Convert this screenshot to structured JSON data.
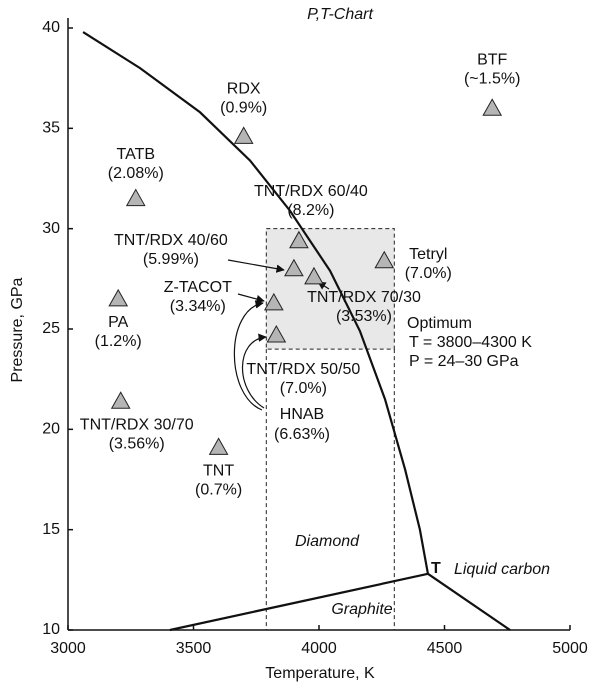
{
  "chart_data": {
    "type": "scatter",
    "title": "P,T-Chart",
    "xlabel": "Temperature, K",
    "ylabel": "Pressure, GPa",
    "xlim": [
      3000,
      5000
    ],
    "ylim": [
      10,
      40
    ],
    "xticks": [
      3000,
      3500,
      4000,
      4500,
      5000
    ],
    "yticks": [
      10,
      15,
      20,
      25,
      30,
      35,
      40
    ],
    "marker_color": "#b5b5b5",
    "points": [
      {
        "name": "RDX",
        "label": "(0.9%)",
        "x": 3700,
        "y": 34.6
      },
      {
        "name": "BTF",
        "label": "(~1.5%)",
        "x": 4690,
        "y": 36
      },
      {
        "name": "TATB",
        "label": "(2.08%)",
        "x": 3270,
        "y": 31.5
      },
      {
        "name": "TNT/RDX 60/40",
        "label": "(8.2%)",
        "x": 3920,
        "y": 29.4
      },
      {
        "name": "TNT/RDX 40/60",
        "label": "(5.99%)",
        "x": 3900,
        "y": 28
      },
      {
        "name": "TNT/RDX 70/30",
        "label": "(3.53%)",
        "x": 3980,
        "y": 27.6
      },
      {
        "name": "Tetryl",
        "label": "(7.0%)",
        "x": 4260,
        "y": 28.4
      },
      {
        "name": "PA",
        "label": "(1.2%)",
        "x": 3200,
        "y": 26.5
      },
      {
        "name": "Z-TACOT",
        "label": "(3.34%)",
        "x": 3820,
        "y": 26.3
      },
      {
        "name": "TNT/RDX 50/50",
        "label": "(7.0%)",
        "x": 3830,
        "y": 24.7
      },
      {
        "name": "TNT/RDX 30/70",
        "label": "(3.56%)",
        "x": 3210,
        "y": 21.4
      },
      {
        "name": "TNT",
        "label": "(0.7%)",
        "x": 3600,
        "y": 19.1
      }
    ],
    "curves": [
      {
        "x": [
          3060,
          3287,
          3526,
          3725,
          3884,
          4044,
          4163,
          4263,
          4343,
          4402,
          4434
        ],
        "y": [
          39.8,
          38.0,
          35.8,
          33.4,
          30.9,
          27.9,
          24.9,
          21.5,
          18.0,
          15.0,
          12.8
        ]
      },
      {
        "x": [
          3406,
          4434
        ],
        "y": [
          10,
          12.8
        ]
      },
      {
        "x": [
          4434,
          4761
        ],
        "y": [
          12.8,
          10
        ]
      }
    ],
    "optimum": {
      "xlim": [
        3790,
        4300
      ],
      "ylim": [
        24,
        30
      ],
      "title": "Optimum",
      "lines": [
        "T = 3800–4300 K",
        "P = 24–30 GPa"
      ]
    },
    "hnab": {
      "name": "HNAB",
      "label": "(6.63%)"
    },
    "regions": {
      "diamond": "Diamond",
      "graphite": "Graphite",
      "liquid": "Liquid carbon",
      "triple": "T"
    }
  }
}
